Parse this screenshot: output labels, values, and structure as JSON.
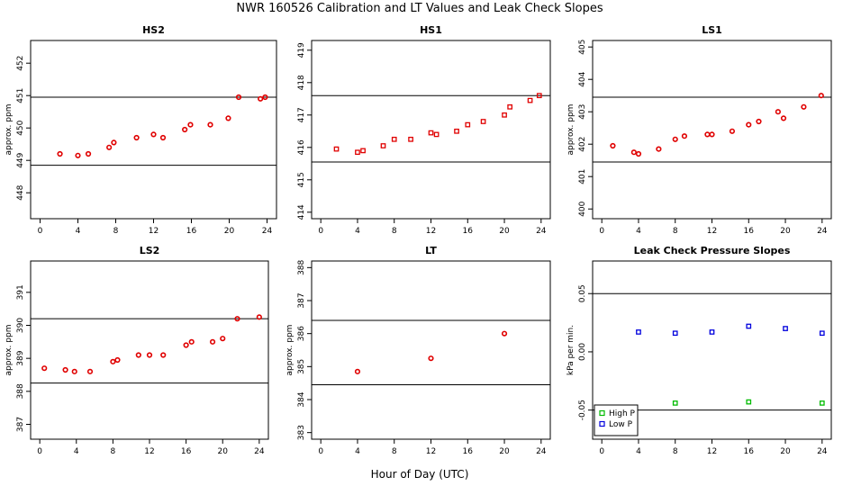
{
  "figure": {
    "title": "NWR  160526  Calibration and LT Values and Leak Check Slopes",
    "xlabel": "Hour of Day (UTC)"
  },
  "chart_data": [
    {
      "type": "scatter",
      "title": "HS2",
      "ylabel": "approx. ppm",
      "xlim": [
        -1,
        25
      ],
      "xticks": [
        0,
        4,
        8,
        12,
        16,
        20,
        24
      ],
      "ylim": [
        447.2,
        452.7
      ],
      "yticks": [
        448,
        449,
        450,
        451,
        452
      ],
      "hlines": [
        448.85,
        450.95
      ],
      "series": [
        {
          "marker": "circle",
          "color": "#e00000",
          "x": [
            2.1,
            4.0,
            5.1,
            7.3,
            7.8,
            10.2,
            12.0,
            13.0,
            15.3,
            15.9,
            18.0,
            19.9,
            21.0,
            23.3,
            23.8
          ],
          "y": [
            449.2,
            449.15,
            449.2,
            449.4,
            449.55,
            449.7,
            449.8,
            449.7,
            449.95,
            450.1,
            450.1,
            450.3,
            450.95,
            450.9,
            450.95
          ]
        }
      ]
    },
    {
      "type": "scatter",
      "title": "HS1",
      "ylabel": "",
      "xlim": [
        -1,
        25
      ],
      "xticks": [
        0,
        4,
        8,
        12,
        16,
        20,
        24
      ],
      "ylim": [
        413.8,
        419.3
      ],
      "yticks": [
        414,
        415,
        416,
        417,
        418,
        419
      ],
      "hlines": [
        415.55,
        417.6
      ],
      "series": [
        {
          "marker": "square",
          "color": "#e00000",
          "x": [
            1.7,
            4.0,
            4.6,
            6.8,
            8.0,
            9.8,
            12.0,
            12.6,
            14.8,
            16.0,
            17.7,
            20.0,
            20.6,
            22.8,
            23.8
          ],
          "y": [
            415.95,
            415.85,
            415.9,
            416.05,
            416.25,
            416.25,
            416.45,
            416.4,
            416.5,
            416.7,
            416.8,
            417.0,
            417.25,
            417.45,
            417.6
          ]
        }
      ]
    },
    {
      "type": "scatter",
      "title": "LS1",
      "ylabel": "approx. ppm",
      "xlim": [
        -1,
        25
      ],
      "xticks": [
        0,
        4,
        8,
        12,
        16,
        20,
        24
      ],
      "ylim": [
        399.7,
        405.2
      ],
      "yticks": [
        400,
        401,
        402,
        403,
        404,
        405
      ],
      "hlines": [
        401.45,
        403.45
      ],
      "series": [
        {
          "marker": "circle",
          "color": "#e00000",
          "x": [
            1.2,
            3.5,
            4.0,
            6.2,
            8.0,
            9.0,
            11.5,
            12.0,
            14.2,
            16.0,
            17.1,
            19.2,
            19.8,
            22.0,
            23.9
          ],
          "y": [
            401.95,
            401.75,
            401.7,
            401.85,
            402.15,
            402.25,
            402.3,
            402.3,
            402.4,
            402.6,
            402.7,
            403.0,
            402.8,
            403.15,
            403.5
          ]
        }
      ]
    },
    {
      "type": "scatter",
      "title": "LS2",
      "ylabel": "approx. ppm",
      "xlim": [
        -1,
        25
      ],
      "xticks": [
        0,
        4,
        8,
        12,
        16,
        20,
        24
      ],
      "ylim": [
        386.55,
        391.95
      ],
      "yticks": [
        387,
        388,
        389,
        390,
        391
      ],
      "hlines": [
        388.25,
        390.2
      ],
      "series": [
        {
          "marker": "circle",
          "color": "#e00000",
          "x": [
            0.5,
            2.8,
            3.8,
            5.5,
            8.0,
            8.5,
            10.8,
            12.0,
            13.5,
            16.0,
            16.6,
            18.9,
            20.0,
            21.6,
            24.0
          ],
          "y": [
            388.7,
            388.65,
            388.6,
            388.6,
            388.9,
            388.95,
            389.1,
            389.1,
            389.1,
            389.4,
            389.5,
            389.5,
            389.6,
            390.2,
            390.25
          ]
        }
      ]
    },
    {
      "type": "scatter",
      "title": "LT",
      "ylabel": "approx. ppm",
      "xlim": [
        -1,
        25
      ],
      "xticks": [
        0,
        4,
        8,
        12,
        16,
        20,
        24
      ],
      "ylim": [
        382.8,
        388.2
      ],
      "yticks": [
        383,
        384,
        385,
        386,
        387,
        388
      ],
      "hlines": [
        384.45,
        386.4
      ],
      "series": [
        {
          "marker": "circle",
          "color": "#e00000",
          "x": [
            4.0,
            12.0,
            20.0
          ],
          "y": [
            384.85,
            385.25,
            386.0
          ]
        }
      ]
    },
    {
      "type": "scatter",
      "title": "Leak Check Pressure Slopes",
      "ylabel": "kPa per min.",
      "xlim": [
        -1,
        25
      ],
      "xticks": [
        0,
        4,
        8,
        12,
        16,
        20,
        24
      ],
      "ylim": [
        -0.075,
        0.078
      ],
      "yticks": [
        -0.05,
        0.0,
        0.05
      ],
      "ytick_labels": [
        "-0.05",
        "0.00",
        "0.05"
      ],
      "hlines": [
        -0.05,
        0.05
      ],
      "legend": "bottom-left",
      "series": [
        {
          "name": "High P",
          "marker": "square",
          "color": "#00bb00",
          "x": [
            8.0,
            16.0,
            24.0
          ],
          "y": [
            -0.044,
            -0.043,
            -0.044
          ]
        },
        {
          "name": "Low P",
          "marker": "square",
          "color": "#0000dd",
          "x": [
            4.0,
            8.0,
            12.0,
            16.0,
            20.0,
            24.0
          ],
          "y": [
            0.017,
            0.016,
            0.017,
            0.022,
            0.02,
            0.016
          ]
        }
      ]
    }
  ]
}
